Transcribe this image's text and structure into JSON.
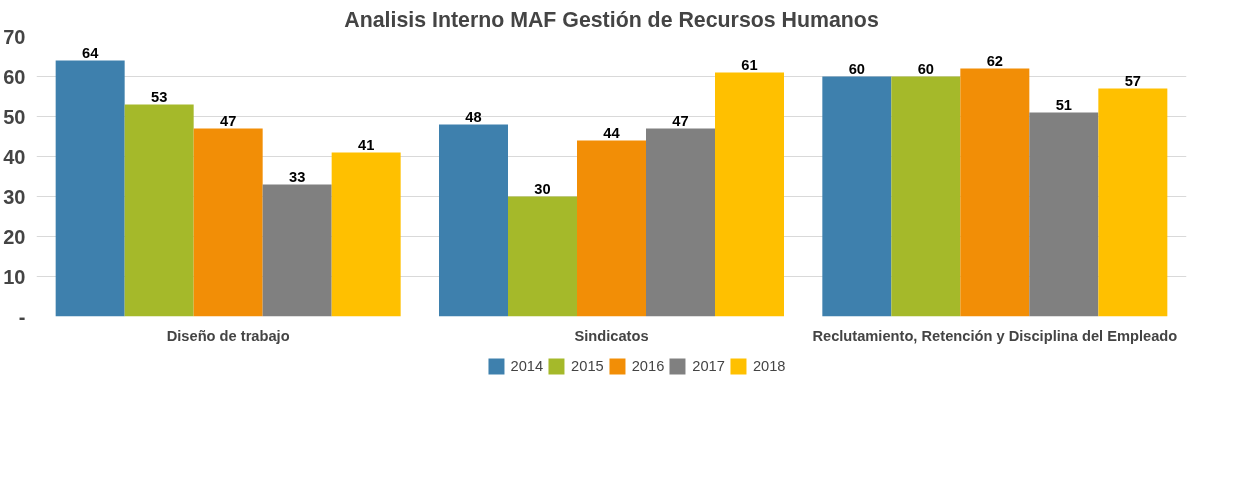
{
  "chart_data": {
    "type": "bar",
    "title": "Analisis Interno MAF Gestión de Recursos Humanos",
    "categories": [
      "Diseño de trabajo",
      "Sindicatos",
      "Reclutamiento, Retención y Disciplina del Empleado"
    ],
    "series": [
      {
        "name": "2014",
        "color": "#3e80ad",
        "values": [
          64,
          48,
          60
        ]
      },
      {
        "name": "2015",
        "color": "#a5b92a",
        "values": [
          53,
          30,
          60
        ]
      },
      {
        "name": "2016",
        "color": "#f28e06",
        "values": [
          47,
          44,
          62
        ]
      },
      {
        "name": "2017",
        "color": "#808080",
        "values": [
          33,
          47,
          51
        ]
      },
      {
        "name": "2018",
        "color": "#ffc000",
        "values": [
          41,
          61,
          57
        ]
      }
    ],
    "ylim": [
      0,
      70
    ],
    "yticks": [
      {
        "value": 0,
        "label": "-"
      },
      10,
      20,
      30,
      40,
      50,
      60,
      70
    ],
    "grid": "y",
    "legend": "bottom",
    "data_labels": true
  }
}
